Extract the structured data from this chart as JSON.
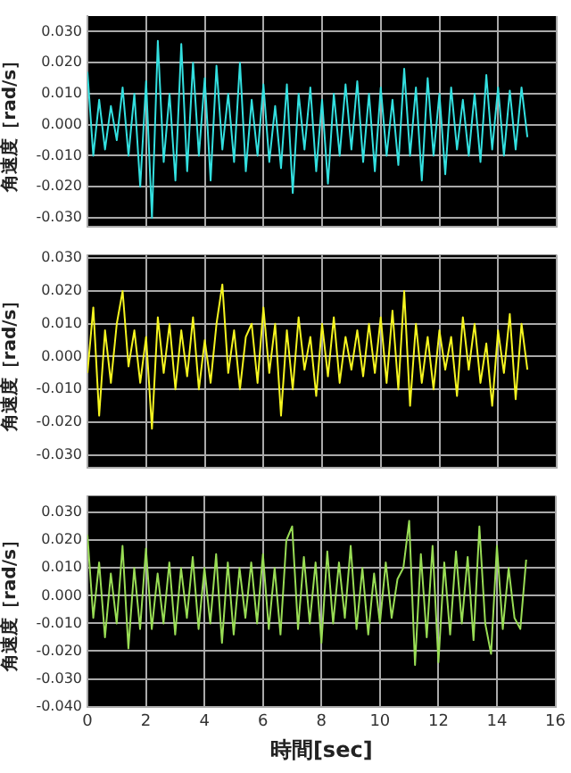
{
  "chart_data": [
    {
      "type": "line",
      "ylabel": "角速度［rad/s］",
      "grid": true,
      "marker": "none",
      "tick_labels": "y",
      "xlim": [
        0,
        16
      ],
      "xticks": [
        0,
        2,
        4,
        6,
        8,
        10,
        12,
        14,
        16
      ],
      "ylim": [
        -0.033,
        0.035
      ],
      "yticks": [
        {
          "value": -0.03,
          "label": "-0.030"
        },
        {
          "value": -0.02,
          "label": "-0.020"
        },
        {
          "value": -0.01,
          "label": "-0.010"
        },
        {
          "value": 0,
          "label": "0.000"
        },
        {
          "value": 0.01,
          "label": "0.010"
        },
        {
          "value": 0.02,
          "label": "0.020"
        },
        {
          "value": 0.03,
          "label": "0.030"
        }
      ],
      "x": [
        0,
        0.2,
        0.4,
        0.6,
        0.8,
        1,
        1.2,
        1.4,
        1.6,
        1.8,
        2,
        2.2,
        2.4,
        2.6,
        2.8,
        3,
        3.2,
        3.4,
        3.6,
        3.8,
        4,
        4.2,
        4.4,
        4.6,
        4.8,
        5,
        5.2,
        5.4,
        5.6,
        5.8,
        6,
        6.2,
        6.4,
        6.6,
        6.8,
        7,
        7.2,
        7.4,
        7.6,
        7.8,
        8,
        8.2,
        8.4,
        8.6,
        8.8,
        9,
        9.2,
        9.4,
        9.6,
        9.8,
        10,
        10.2,
        10.4,
        10.6,
        10.8,
        11,
        11.2,
        11.4,
        11.6,
        11.8,
        12,
        12.2,
        12.4,
        12.6,
        12.8,
        13,
        13.2,
        13.4,
        13.6,
        13.8,
        14,
        14.2,
        14.4,
        14.6,
        14.8,
        15
      ],
      "series": [
        {
          "color": "#33e0e0",
          "values": [
            0.017,
            -0.01,
            0.008,
            -0.008,
            0.006,
            -0.005,
            0.012,
            -0.01,
            0.01,
            -0.02,
            0.014,
            -0.03,
            0.027,
            -0.012,
            0.01,
            -0.018,
            0.026,
            -0.015,
            0.02,
            -0.01,
            0.015,
            -0.018,
            0.019,
            -0.008,
            0.01,
            -0.012,
            0.02,
            -0.015,
            0.008,
            -0.01,
            0.013,
            -0.012,
            0.006,
            -0.014,
            0.013,
            -0.022,
            0.01,
            -0.008,
            0.012,
            -0.015,
            0.008,
            -0.019,
            0.01,
            -0.01,
            0.013,
            -0.008,
            0.014,
            -0.012,
            0.01,
            -0.015,
            0.012,
            -0.01,
            0.008,
            -0.013,
            0.018,
            -0.01,
            0.012,
            -0.018,
            0.015,
            -0.01,
            0.01,
            -0.016,
            0.012,
            -0.008,
            0.008,
            -0.01,
            0.01,
            -0.012,
            0.016,
            -0.008,
            0.012,
            -0.01,
            0.011,
            -0.008,
            0.012,
            -0.004
          ]
        }
      ]
    },
    {
      "type": "line",
      "ylabel": "角速度［rad/s］",
      "grid": true,
      "marker": "none",
      "tick_labels": "y",
      "xlim": [
        0,
        16
      ],
      "xticks": [
        0,
        2,
        4,
        6,
        8,
        10,
        12,
        14,
        16
      ],
      "ylim": [
        -0.034,
        0.031
      ],
      "yticks": [
        {
          "value": -0.03,
          "label": "-0.030"
        },
        {
          "value": -0.02,
          "label": "-0.020"
        },
        {
          "value": -0.01,
          "label": "-0.010"
        },
        {
          "value": 0,
          "label": "0.000"
        },
        {
          "value": 0.01,
          "label": "0.010"
        },
        {
          "value": 0.02,
          "label": "0.020"
        },
        {
          "value": 0.03,
          "label": "0.030"
        }
      ],
      "x": [
        0,
        0.2,
        0.4,
        0.6,
        0.8,
        1,
        1.2,
        1.4,
        1.6,
        1.8,
        2,
        2.2,
        2.4,
        2.6,
        2.8,
        3,
        3.2,
        3.4,
        3.6,
        3.8,
        4,
        4.2,
        4.4,
        4.6,
        4.8,
        5,
        5.2,
        5.4,
        5.6,
        5.8,
        6,
        6.2,
        6.4,
        6.6,
        6.8,
        7,
        7.2,
        7.4,
        7.6,
        7.8,
        8,
        8.2,
        8.4,
        8.6,
        8.8,
        9,
        9.2,
        9.4,
        9.6,
        9.8,
        10,
        10.2,
        10.4,
        10.6,
        10.8,
        11,
        11.2,
        11.4,
        11.6,
        11.8,
        12,
        12.2,
        12.4,
        12.6,
        12.8,
        13,
        13.2,
        13.4,
        13.6,
        13.8,
        14,
        14.2,
        14.4,
        14.6,
        14.8,
        15
      ],
      "series": [
        {
          "color": "#f5f520",
          "values": [
            -0.005,
            0.015,
            -0.018,
            0.008,
            -0.008,
            0.01,
            0.02,
            -0.003,
            0.008,
            -0.008,
            0.006,
            -0.022,
            0.012,
            -0.005,
            0.01,
            -0.01,
            0.008,
            -0.006,
            0.012,
            -0.01,
            0.005,
            -0.008,
            0.01,
            0.022,
            -0.005,
            0.008,
            -0.01,
            0.006,
            0.01,
            -0.008,
            0.015,
            -0.005,
            0.01,
            -0.018,
            0.008,
            -0.01,
            0.012,
            -0.004,
            0.006,
            -0.012,
            0.01,
            -0.006,
            0.012,
            -0.008,
            0.006,
            -0.004,
            0.008,
            -0.006,
            0.01,
            -0.005,
            0.012,
            -0.008,
            0.014,
            -0.01,
            0.02,
            -0.015,
            0.01,
            -0.008,
            0.006,
            -0.01,
            0.008,
            -0.004,
            0.006,
            -0.012,
            0.012,
            -0.004,
            0.01,
            -0.008,
            0.004,
            -0.015,
            0.008,
            -0.005,
            0.013,
            -0.013,
            0.01,
            -0.004
          ]
        }
      ]
    },
    {
      "type": "line",
      "ylabel": "角速度［rad/s］",
      "xlabel": "時間[sec]",
      "grid": true,
      "marker": "none",
      "xlim": [
        0,
        16
      ],
      "xticks": [
        0,
        2,
        4,
        6,
        8,
        10,
        12,
        14,
        16
      ],
      "ylim": [
        -0.04,
        0.036
      ],
      "yticks": [
        {
          "value": -0.04,
          "label": "-0.040"
        },
        {
          "value": -0.03,
          "label": "-0.030"
        },
        {
          "value": -0.02,
          "label": "-0.020"
        },
        {
          "value": -0.01,
          "label": "-0.010"
        },
        {
          "value": 0,
          "label": "0.000"
        },
        {
          "value": 0.01,
          "label": "0.010"
        },
        {
          "value": 0.02,
          "label": "0.020"
        },
        {
          "value": 0.03,
          "label": "0.030"
        }
      ],
      "x": [
        0,
        0.2,
        0.4,
        0.6,
        0.8,
        1,
        1.2,
        1.4,
        1.6,
        1.8,
        2,
        2.2,
        2.4,
        2.6,
        2.8,
        3,
        3.2,
        3.4,
        3.6,
        3.8,
        4,
        4.2,
        4.4,
        4.6,
        4.8,
        5,
        5.2,
        5.4,
        5.6,
        5.8,
        6,
        6.2,
        6.4,
        6.6,
        6.8,
        7,
        7.2,
        7.4,
        7.6,
        7.8,
        8,
        8.2,
        8.4,
        8.6,
        8.8,
        9,
        9.2,
        9.4,
        9.6,
        9.8,
        10,
        10.2,
        10.4,
        10.6,
        10.8,
        11,
        11.2,
        11.4,
        11.6,
        11.8,
        12,
        12.2,
        12.4,
        12.6,
        12.8,
        13,
        13.2,
        13.4,
        13.6,
        13.8,
        14,
        14.2,
        14.4,
        14.6,
        14.8,
        15
      ],
      "series": [
        {
          "color": "#99dd55",
          "values": [
            0.022,
            -0.008,
            0.012,
            -0.015,
            0.008,
            -0.01,
            0.018,
            -0.019,
            0.01,
            -0.012,
            0.017,
            -0.012,
            0.008,
            -0.01,
            0.012,
            -0.014,
            0.01,
            -0.008,
            0.014,
            -0.012,
            0.01,
            -0.01,
            0.015,
            -0.017,
            0.012,
            -0.014,
            0.01,
            -0.008,
            0.012,
            -0.01,
            0.015,
            -0.012,
            0.01,
            -0.014,
            0.02,
            0.025,
            -0.012,
            0.014,
            -0.01,
            0.012,
            -0.017,
            0.016,
            -0.01,
            0.012,
            -0.008,
            0.018,
            -0.012,
            0.01,
            -0.014,
            0.008,
            -0.01,
            0.012,
            -0.008,
            0.006,
            0.01,
            0.027,
            -0.025,
            0.015,
            -0.015,
            0.018,
            -0.024,
            0.012,
            -0.014,
            0.016,
            -0.01,
            0.014,
            -0.016,
            0.025,
            -0.01,
            -0.021,
            0.018,
            -0.012,
            0.01,
            -0.008,
            -0.012,
            0.013
          ]
        }
      ]
    }
  ]
}
